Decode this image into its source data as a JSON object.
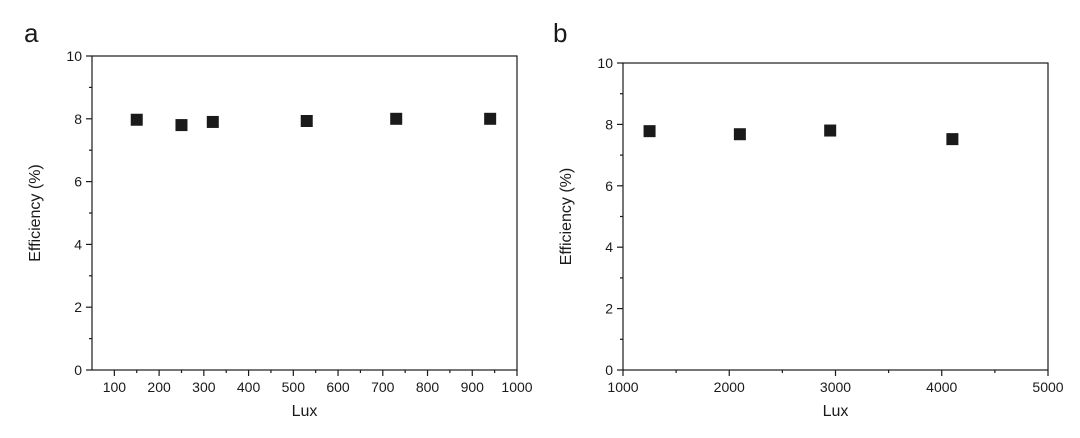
{
  "chart_data": [
    {
      "type": "scatter",
      "panel_label": "a",
      "xlabel": "Lux",
      "ylabel": "Efficiency (%)",
      "xlim": [
        50,
        1000
      ],
      "ylim": [
        0,
        10
      ],
      "xticks": [
        100,
        200,
        300,
        400,
        500,
        600,
        700,
        800,
        900,
        1000
      ],
      "yticks": [
        0,
        2,
        4,
        6,
        8,
        10
      ],
      "grid": false,
      "marker": "square",
      "series": [
        {
          "x": [
            150,
            250,
            320,
            530,
            730,
            940
          ],
          "y": [
            7.97,
            7.8,
            7.9,
            7.93,
            8.0,
            8.0
          ]
        }
      ]
    },
    {
      "type": "scatter",
      "panel_label": "b",
      "xlabel": "Lux",
      "ylabel": "Efficiency (%)",
      "xlim": [
        1000,
        5000
      ],
      "ylim": [
        0,
        10
      ],
      "xticks": [
        1000,
        2000,
        3000,
        4000,
        5000
      ],
      "yticks": [
        0,
        2,
        4,
        6,
        8,
        10
      ],
      "grid": false,
      "marker": "square",
      "series": [
        {
          "x": [
            1250,
            2100,
            2950,
            4100
          ],
          "y": [
            7.78,
            7.68,
            7.8,
            7.52
          ]
        }
      ]
    }
  ]
}
